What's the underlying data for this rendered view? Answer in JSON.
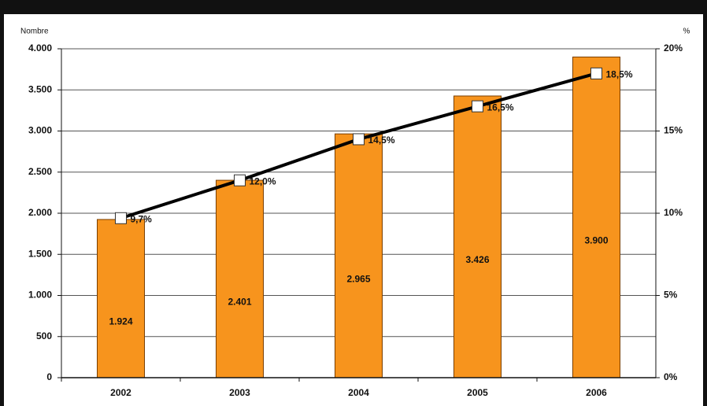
{
  "chart_data": {
    "type": "bar",
    "y_label": "Nombre",
    "y2_label": "%",
    "categories": [
      "2002",
      "2003",
      "2004",
      "2005",
      "2006"
    ],
    "series": [
      {
        "type": "bar",
        "color": "#f7941d",
        "values": [
          1924,
          2401,
          2965,
          3426,
          3900
        ],
        "value_labels": [
          "1.924",
          "2.401",
          "2.965",
          "3.426",
          "3.900"
        ]
      },
      {
        "type": "line",
        "axis": "y2",
        "color": "#000000",
        "values": [
          9.7,
          12.0,
          14.5,
          16.5,
          18.5
        ],
        "value_labels": [
          "9,7%",
          "12,0%",
          "14,5%",
          "16,5%",
          "18,5%"
        ]
      }
    ],
    "ylim": [
      0,
      4000
    ],
    "yticks": [
      0,
      500,
      {
        "value": 1000,
        "label": "1.000"
      },
      {
        "value": 1500,
        "label": "1.500"
      },
      {
        "value": 2000,
        "label": "2.000"
      },
      {
        "value": 2500,
        "label": "2.500"
      },
      {
        "value": 3000,
        "label": "3.000"
      },
      {
        "value": 3500,
        "label": "3.500"
      },
      {
        "value": 4000,
        "label": "4.000"
      }
    ],
    "y2lim": [
      0,
      20
    ],
    "y2ticks": [
      {
        "value": 0,
        "label": "0%"
      },
      {
        "value": 5,
        "label": "5%"
      },
      {
        "value": 10,
        "label": "10%"
      },
      {
        "value": 15,
        "label": "15%"
      },
      {
        "value": 20,
        "label": "20%"
      }
    ],
    "grid": true
  }
}
